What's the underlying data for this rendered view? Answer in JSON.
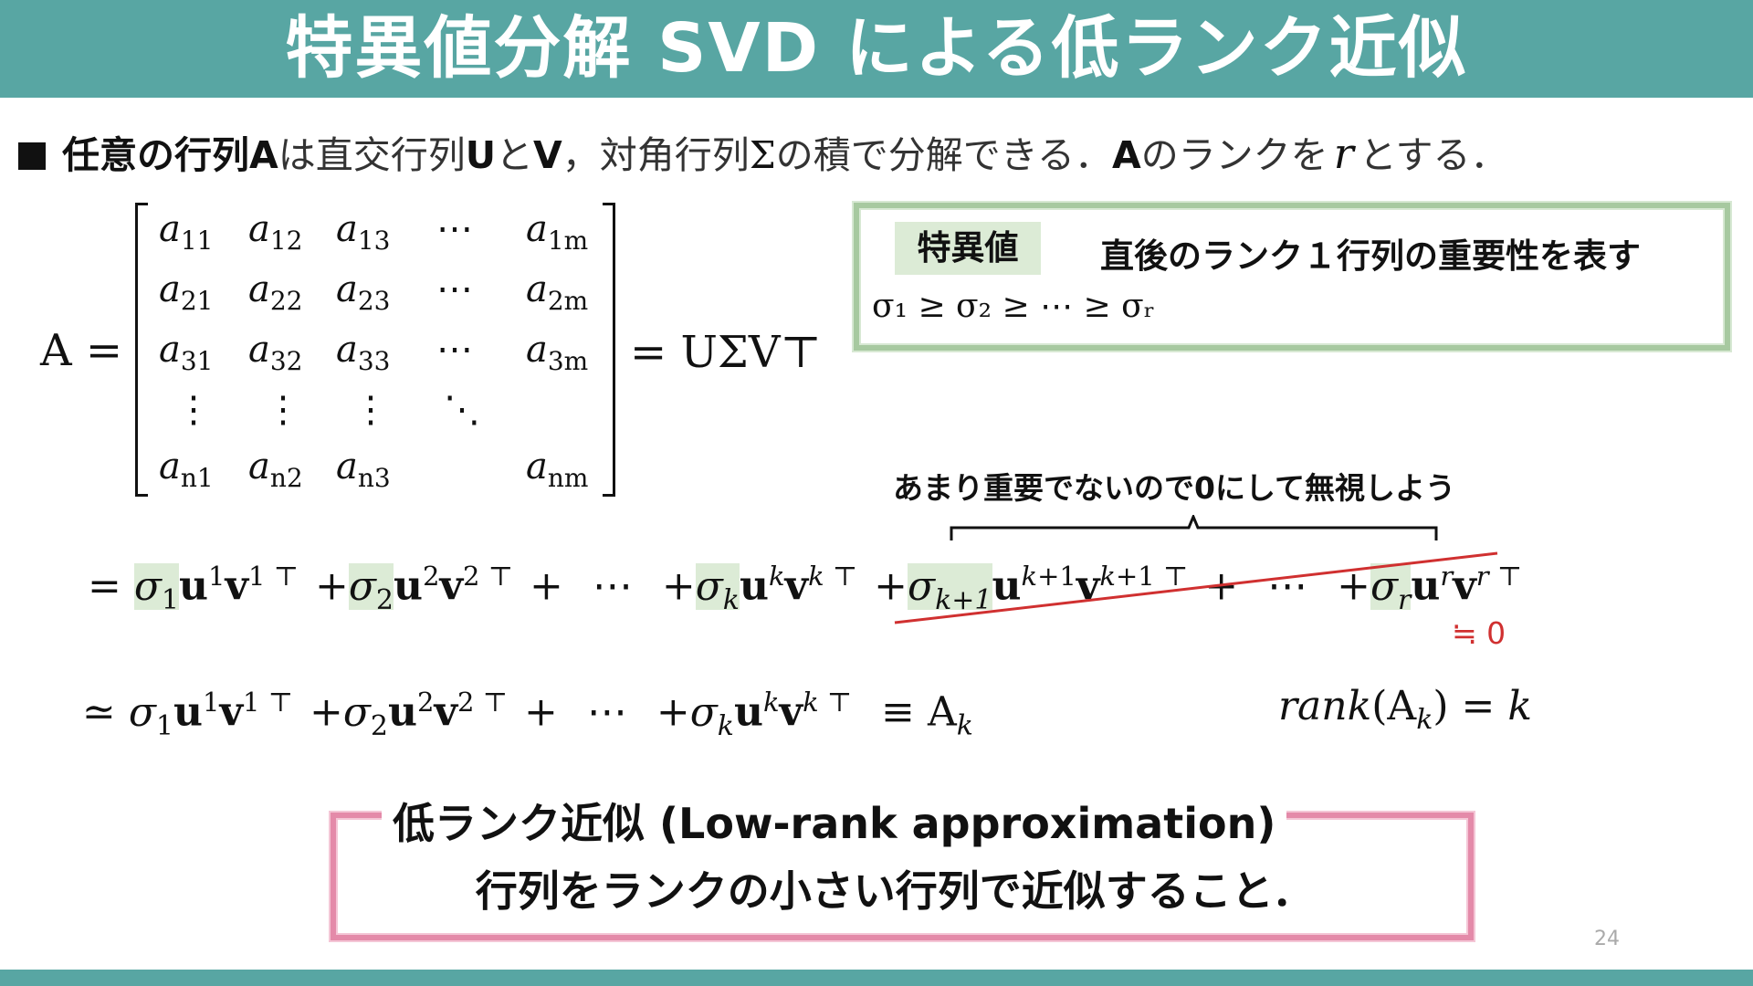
{
  "title": "特異値分解 SVD による低ランク近似",
  "intro": {
    "part1": "任意の行列A",
    "part2": "は直交行列",
    "part3": "U",
    "part4": "と",
    "part5": "V",
    "part6": "，対角行列",
    "part7": "Σ",
    "part8": "の積で分解できる．",
    "part9": "A",
    "part10": "のランクを",
    "part11": "r",
    "part12": "とする．"
  },
  "matrix": {
    "lhs": "A =",
    "rhs": "= UΣV⊤",
    "dots_h": "⋯",
    "dots_v": "⋮",
    "dots_d": "⋱",
    "r1": [
      "11",
      "12",
      "13",
      "1m"
    ],
    "r2": [
      "21",
      "22",
      "23",
      "2m"
    ],
    "r3": [
      "31",
      "32",
      "33",
      "3m"
    ],
    "r5": [
      "n1",
      "n2",
      "n3",
      "nm"
    ]
  },
  "singular_values": {
    "label": "特異値",
    "description": "直後のランク１行列の重要性を表す",
    "order": "σ₁ ≥ σ₂ ≥ ⋯ ≥ σᵣ"
  },
  "note": "あまり重要でないので0にして無視しよう",
  "approx_zero": "≒ 0",
  "rank_eq": "rank(A_k) = k",
  "low_rank": {
    "title": "低ランク近似 (Low-rank approximation)",
    "description": "行列をランクの小さい行列で近似すること．"
  },
  "page_number": "24",
  "colors": {
    "title_bar": "#58a6a3",
    "highlight": "#dcebd6",
    "strike": "#d03030",
    "pink_frame": "#e48aa9"
  }
}
